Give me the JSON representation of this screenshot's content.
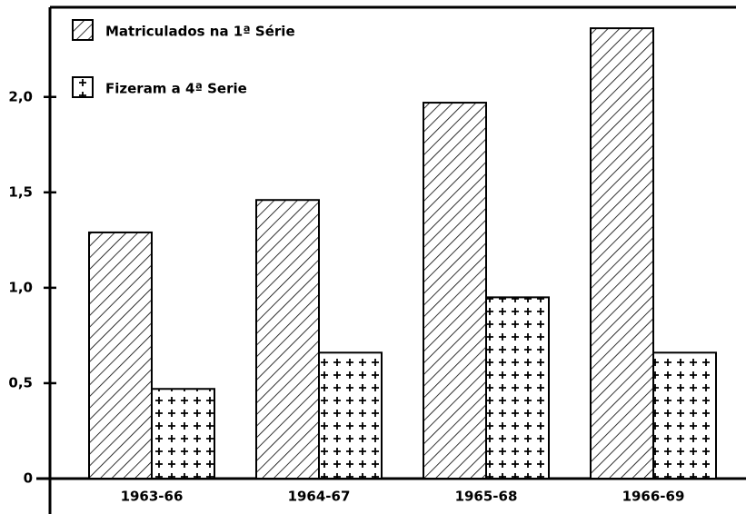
{
  "chart_data": {
    "type": "bar",
    "categories": [
      "1963-66",
      "1964-67",
      "1965-68",
      "1966-69"
    ],
    "series": [
      {
        "name": "Matriculados na 1ª Série",
        "color": "#000000",
        "hatch": "diagonal",
        "values": [
          1.29,
          1.46,
          1.97,
          2.36
        ]
      },
      {
        "name": "Fizeram a 4ª Serie",
        "color": "#000000",
        "hatch": "plus",
        "values": [
          0.47,
          0.66,
          0.95,
          0.66
        ]
      }
    ],
    "ylim": [
      0,
      2.47
    ],
    "yticks": [
      0,
      {
        "value": 0.5,
        "label": "0,5"
      },
      {
        "value": 1.0,
        "label": "1,0"
      },
      {
        "value": 1.5,
        "label": "1,5"
      },
      {
        "value": 2.0,
        "label": "2,0"
      }
    ],
    "legend": "top-left"
  }
}
